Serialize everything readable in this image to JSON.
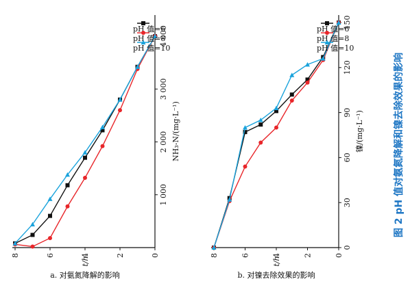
{
  "figure_caption": "图 2   pH 值对氨氮降解和镍去除效果的影响",
  "colors": {
    "ph6": "#111111",
    "ph8": "#e8262a",
    "ph10": "#1aa3dc",
    "caption": "#1f77c4"
  },
  "chart_data": [
    {
      "type": "line",
      "caption": "a. 对氨氮降解的影响",
      "xlabel": "t/h",
      "ylabel": "NH₃-N/(mg·L⁻¹)",
      "xlim": [
        0,
        8
      ],
      "ylim": [
        0,
        4400
      ],
      "xticks": [
        0,
        2,
        4,
        6,
        8
      ],
      "yticks": [
        1000,
        2000,
        3000,
        4000
      ],
      "ytick_labels": [
        "1 000",
        "2 000",
        "3 000",
        "4 000"
      ],
      "legend_position": "top-left",
      "series": [
        {
          "name": "pH 值=6",
          "x": [
            0,
            1,
            2,
            3,
            4,
            5,
            6,
            7,
            8
          ],
          "y": [
            4000,
            3420,
            2800,
            2220,
            1700,
            1180,
            600,
            240,
            80
          ]
        },
        {
          "name": "pH 值=8",
          "x": [
            0,
            1,
            2,
            3,
            4,
            5,
            6,
            7,
            8
          ],
          "y": [
            4000,
            3380,
            2600,
            1920,
            1320,
            780,
            180,
            20,
            60
          ]
        },
        {
          "name": "pH 值=10",
          "x": [
            0,
            1,
            2,
            3,
            4,
            5,
            6,
            7,
            8
          ],
          "y": [
            4000,
            3420,
            2800,
            2280,
            1800,
            1380,
            920,
            440,
            80
          ]
        }
      ]
    },
    {
      "type": "line",
      "caption": "b. 对镍去除效果的影响",
      "xlabel": "t/h",
      "ylabel": "镍/(mg·L⁻¹)",
      "xlim": [
        0,
        8
      ],
      "ylim": [
        0,
        155
      ],
      "xticks": [
        0,
        2,
        4,
        6,
        8
      ],
      "yticks": [
        0,
        30,
        60,
        90,
        120,
        150
      ],
      "ytick_labels": [
        "0",
        "30",
        "60",
        "90",
        "120",
        "150"
      ],
      "legend_position": "top-left",
      "series": [
        {
          "name": "pH 值=6",
          "x": [
            0,
            1,
            2,
            3,
            4,
            5,
            6,
            7,
            8
          ],
          "y": [
            150,
            127,
            112,
            102,
            91,
            82,
            77,
            33,
            0
          ]
        },
        {
          "name": "pH 值=8",
          "x": [
            0,
            1,
            2,
            3,
            4,
            5,
            6,
            7,
            8
          ],
          "y": [
            150,
            125,
            110,
            98,
            80,
            70,
            54,
            31,
            0
          ]
        },
        {
          "name": "pH 值=10",
          "x": [
            0,
            1,
            2,
            3,
            4,
            5,
            6,
            7,
            8
          ],
          "y": [
            150,
            126,
            122,
            115,
            93,
            85,
            80,
            32,
            0
          ]
        }
      ]
    }
  ]
}
